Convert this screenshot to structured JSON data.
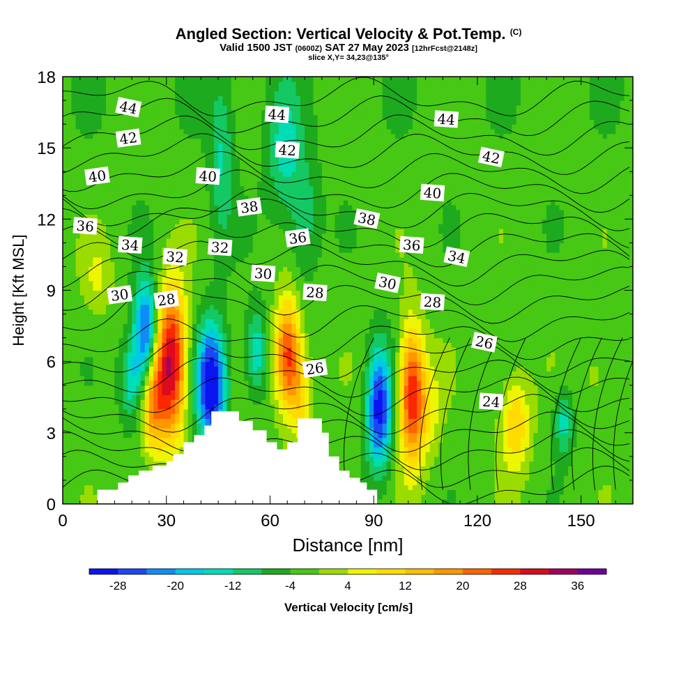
{
  "title": {
    "main": "Angled Section: Vertical Velocity & Pot.Temp.",
    "copyright": "(C)",
    "valid_prefix": "Valid 1500 JST",
    "valid_utc": "(0600Z)",
    "valid_date": "SAT 27 May 2023",
    "forecast": "[12hrFcst@2148z]",
    "slice": "slice X,Y= 34,23@135°"
  },
  "chart_data": {
    "type": "heatmap",
    "xlabel": "Distance [nm]",
    "ylabel": "Height [Kft MSL]",
    "xlim": [
      0,
      165
    ],
    "ylim": [
      0,
      18
    ],
    "xticks": [
      0,
      30,
      60,
      90,
      120,
      150
    ],
    "yticks": [
      0,
      3,
      6,
      9,
      12,
      15,
      18
    ],
    "colorbar": {
      "label": "Vertical Velocity [cm/s]",
      "tick_labels": [
        "-28",
        "-20",
        "-12",
        "-4",
        "4",
        "12",
        "20",
        "28",
        "36"
      ],
      "tick_values": [
        -28,
        -20,
        -12,
        -4,
        4,
        12,
        20,
        28,
        36
      ],
      "min": -32,
      "max": 40,
      "step": 4,
      "colors": [
        "#0a14f0",
        "#1e46f5",
        "#0f8cf5",
        "#00c8e6",
        "#00dcb4",
        "#14c864",
        "#1eaa1e",
        "#46c814",
        "#9bdc00",
        "#eef500",
        "#ffdc00",
        "#ffbe00",
        "#ff9600",
        "#ff6400",
        "#fa2800",
        "#dc0a1e",
        "#a0005a",
        "#6e0096"
      ]
    },
    "velocity_cells": [
      {
        "x": 24,
        "y": 7.2,
        "sx": 2.3,
        "sy": 1.6,
        "w": -26
      },
      {
        "x": 20,
        "y": 5.2,
        "sx": 2.5,
        "sy": 1.3,
        "w": -14
      },
      {
        "x": 31.5,
        "y": 6.0,
        "sx": 3.0,
        "sy": 2.2,
        "w": 34
      },
      {
        "x": 26,
        "y": 4.4,
        "sx": 2.6,
        "sy": 1.6,
        "w": 20
      },
      {
        "x": 43,
        "y": 5.0,
        "sx": 3.0,
        "sy": 1.8,
        "w": -32
      },
      {
        "x": 56,
        "y": 6.4,
        "sx": 2.2,
        "sy": 1.3,
        "w": -14
      },
      {
        "x": 65,
        "y": 6.3,
        "sx": 2.5,
        "sy": 1.6,
        "w": 28
      },
      {
        "x": 69,
        "y": 4.6,
        "sx": 2.2,
        "sy": 1.4,
        "w": 12
      },
      {
        "x": 91.5,
        "y": 4.0,
        "sx": 2.5,
        "sy": 1.8,
        "w": -28
      },
      {
        "x": 101,
        "y": 4.6,
        "sx": 2.5,
        "sy": 2.0,
        "w": 30
      },
      {
        "x": 106,
        "y": 4.0,
        "sx": 2.6,
        "sy": 1.5,
        "w": 8
      },
      {
        "x": 131,
        "y": 3.4,
        "sx": 3.0,
        "sy": 1.4,
        "w": 14
      },
      {
        "x": 145,
        "y": 3.5,
        "sx": 2.0,
        "sy": 1.0,
        "w": -12
      },
      {
        "x": 10,
        "y": 9.5,
        "sx": 3.0,
        "sy": 1.2,
        "w": 6
      },
      {
        "x": 46,
        "y": 14.5,
        "sx": 2.5,
        "sy": 2.5,
        "w": -10
      },
      {
        "x": 64,
        "y": 15.0,
        "sx": 3.5,
        "sy": 2.0,
        "w": -11
      },
      {
        "x": 70,
        "y": 12.0,
        "sx": 3.0,
        "sy": 1.8,
        "w": -9
      },
      {
        "x": 155,
        "y": 5.5,
        "sx": 4.0,
        "sy": 1.5,
        "w": 4
      }
    ],
    "theta_labels": [
      {
        "text": "44",
        "x": 19,
        "y": 16.7
      },
      {
        "text": "44",
        "x": 62,
        "y": 16.4
      },
      {
        "text": "44",
        "x": 111,
        "y": 16.2
      },
      {
        "text": "42",
        "x": 19,
        "y": 15.4
      },
      {
        "text": "42",
        "x": 65,
        "y": 14.9
      },
      {
        "text": "42",
        "x": 124,
        "y": 14.6
      },
      {
        "text": "40",
        "x": 10,
        "y": 13.8
      },
      {
        "text": "40",
        "x": 42,
        "y": 13.8
      },
      {
        "text": "40",
        "x": 107,
        "y": 13.1
      },
      {
        "text": "38",
        "x": 54,
        "y": 12.5
      },
      {
        "text": "38",
        "x": 88,
        "y": 12.0
      },
      {
        "text": "36",
        "x": 6.5,
        "y": 11.7
      },
      {
        "text": "36",
        "x": 68,
        "y": 11.2
      },
      {
        "text": "36",
        "x": 101,
        "y": 10.9
      },
      {
        "text": "34",
        "x": 19.5,
        "y": 10.9
      },
      {
        "text": "34",
        "x": 114,
        "y": 10.4
      },
      {
        "text": "32",
        "x": 32.5,
        "y": 10.4
      },
      {
        "text": "32",
        "x": 45.5,
        "y": 10.8
      },
      {
        "text": "30",
        "x": 16.5,
        "y": 8.8
      },
      {
        "text": "30",
        "x": 58,
        "y": 9.7
      },
      {
        "text": "30",
        "x": 94,
        "y": 9.3
      },
      {
        "text": "28",
        "x": 30,
        "y": 8.6
      },
      {
        "text": "28",
        "x": 73,
        "y": 8.9
      },
      {
        "text": "28",
        "x": 107,
        "y": 8.5
      },
      {
        "text": "26",
        "x": 73,
        "y": 5.7
      },
      {
        "text": "26",
        "x": 122,
        "y": 6.8
      },
      {
        "text": "24",
        "x": 124,
        "y": 4.3
      }
    ],
    "terrain_profile": [
      [
        10,
        0.6
      ],
      [
        16,
        0.9
      ],
      [
        19,
        1.2
      ],
      [
        22,
        1.4
      ],
      [
        26,
        1.6
      ],
      [
        30,
        1.8
      ],
      [
        32,
        2.1
      ],
      [
        35,
        2.6
      ],
      [
        38,
        2.9
      ],
      [
        41,
        3.3
      ],
      [
        43,
        3.9
      ],
      [
        47,
        3.9
      ],
      [
        51,
        3.5
      ],
      [
        55,
        3.1
      ],
      [
        59,
        2.6
      ],
      [
        62,
        2.3
      ],
      [
        65,
        2.6
      ],
      [
        68,
        3.6
      ],
      [
        72,
        3.6
      ],
      [
        75,
        3.0
      ],
      [
        77,
        2.0
      ],
      [
        80,
        1.4
      ],
      [
        83,
        1.1
      ],
      [
        86,
        0.9
      ],
      [
        88,
        0.6
      ],
      [
        91,
        0.6
      ]
    ]
  }
}
